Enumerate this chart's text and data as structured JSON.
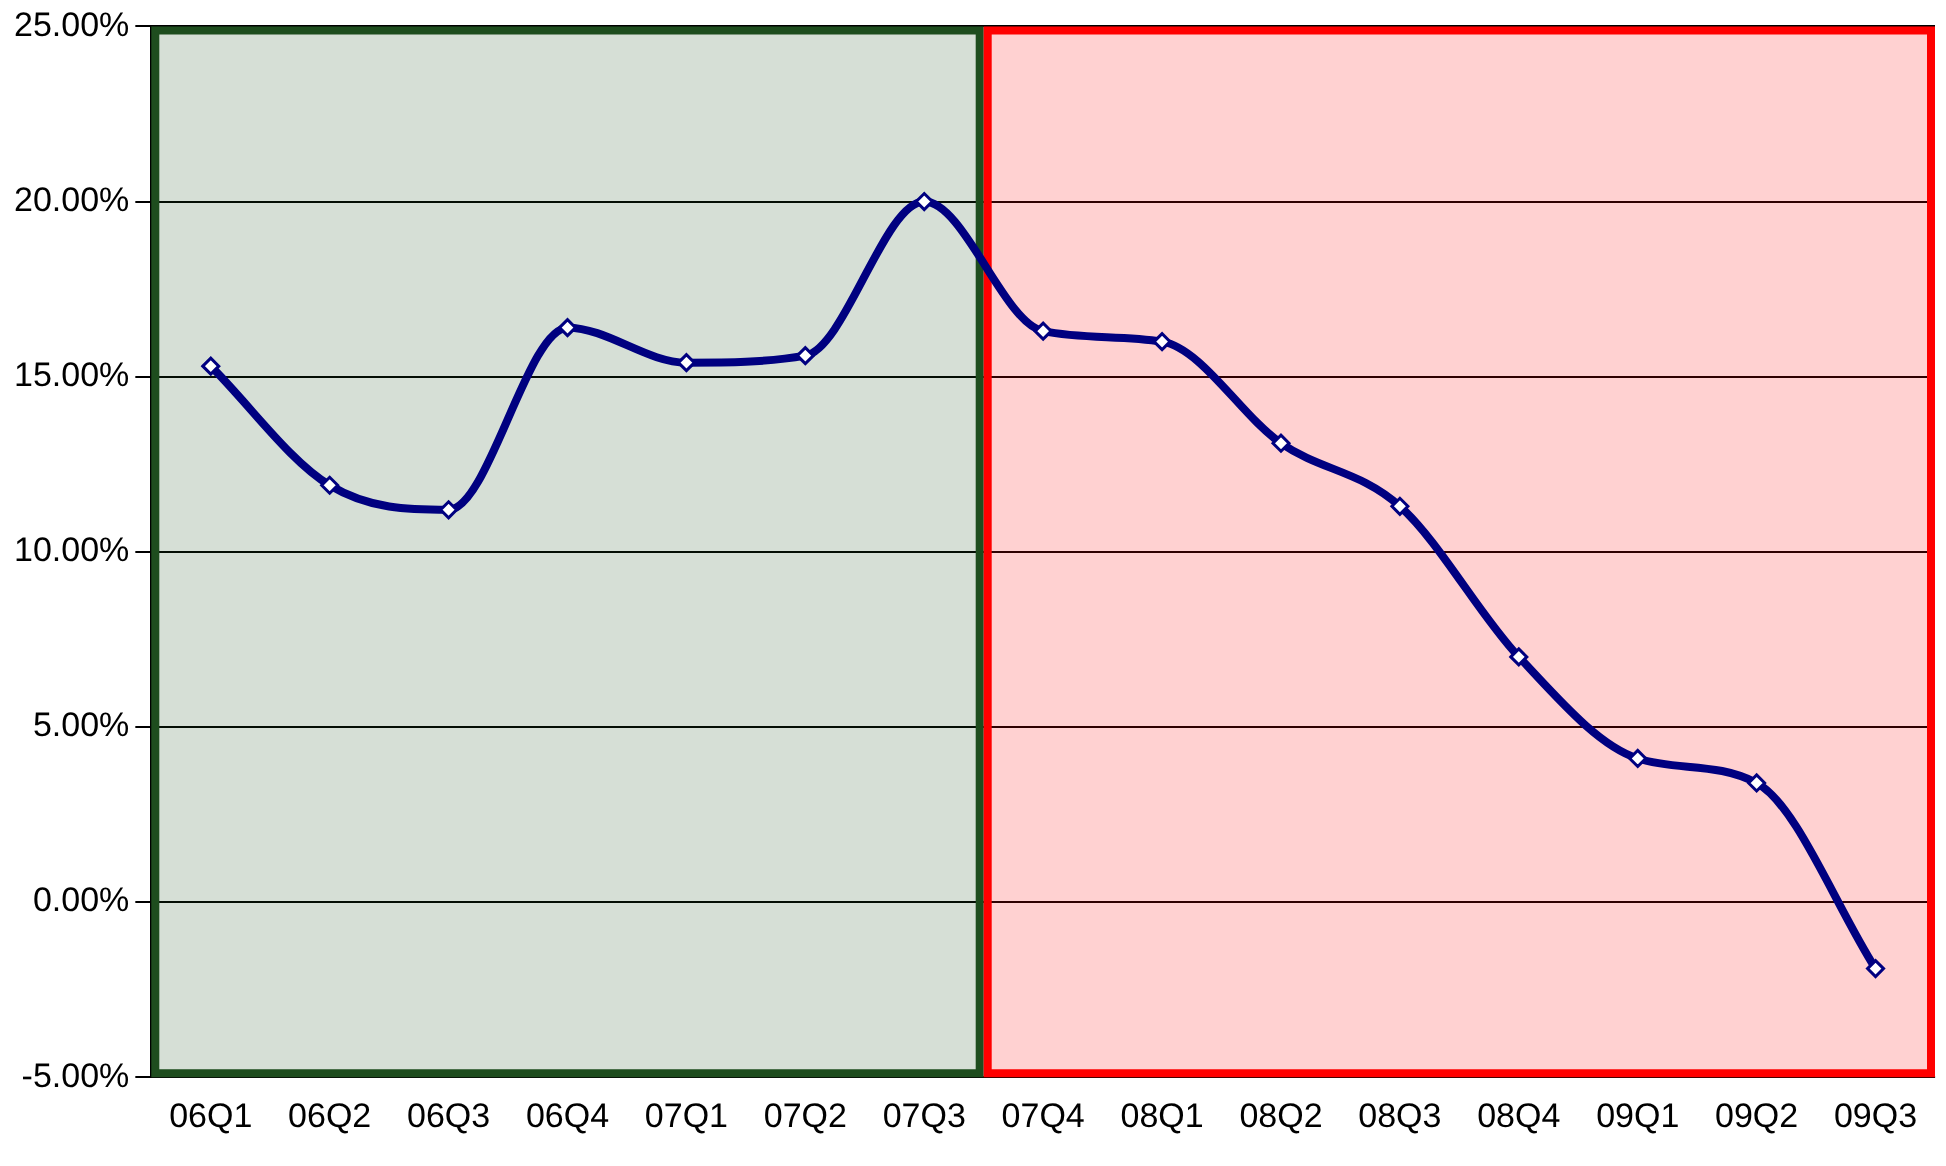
{
  "chart_data": {
    "type": "line",
    "categories": [
      "06Q1",
      "06Q2",
      "06Q3",
      "06Q4",
      "07Q1",
      "07Q2",
      "07Q3",
      "07Q4",
      "08Q1",
      "08Q2",
      "08Q3",
      "08Q4",
      "09Q1",
      "09Q2",
      "09Q3"
    ],
    "series": [
      {
        "color": "#000080",
        "values": [
          15.3,
          11.9,
          11.2,
          16.4,
          15.4,
          15.6,
          20.0,
          16.3,
          16.0,
          13.1,
          11.3,
          7.0,
          4.1,
          3.4,
          -1.9
        ]
      }
    ],
    "ylim": [
      -5,
      25
    ],
    "yticks": [
      {
        "value": -5,
        "label": "-5.00%"
      },
      {
        "value": 0,
        "label": "0.00%"
      },
      {
        "value": 5,
        "label": "5.00%"
      },
      {
        "value": 10,
        "label": "10.00%"
      },
      {
        "value": 15,
        "label": "15.00%"
      },
      {
        "value": 20,
        "label": "20.00%"
      },
      {
        "value": 25,
        "label": "25.00%"
      }
    ],
    "grid": "y",
    "marker": "diamond",
    "line_style": "solid",
    "legend": false,
    "bands": [
      {
        "axis": "x",
        "from": "06Q1",
        "to": "07Q3",
        "color": "#1e4d1e"
      },
      {
        "axis": "x",
        "from": "07Q4",
        "to": "09Q3",
        "color": "#ff0000"
      }
    ]
  }
}
